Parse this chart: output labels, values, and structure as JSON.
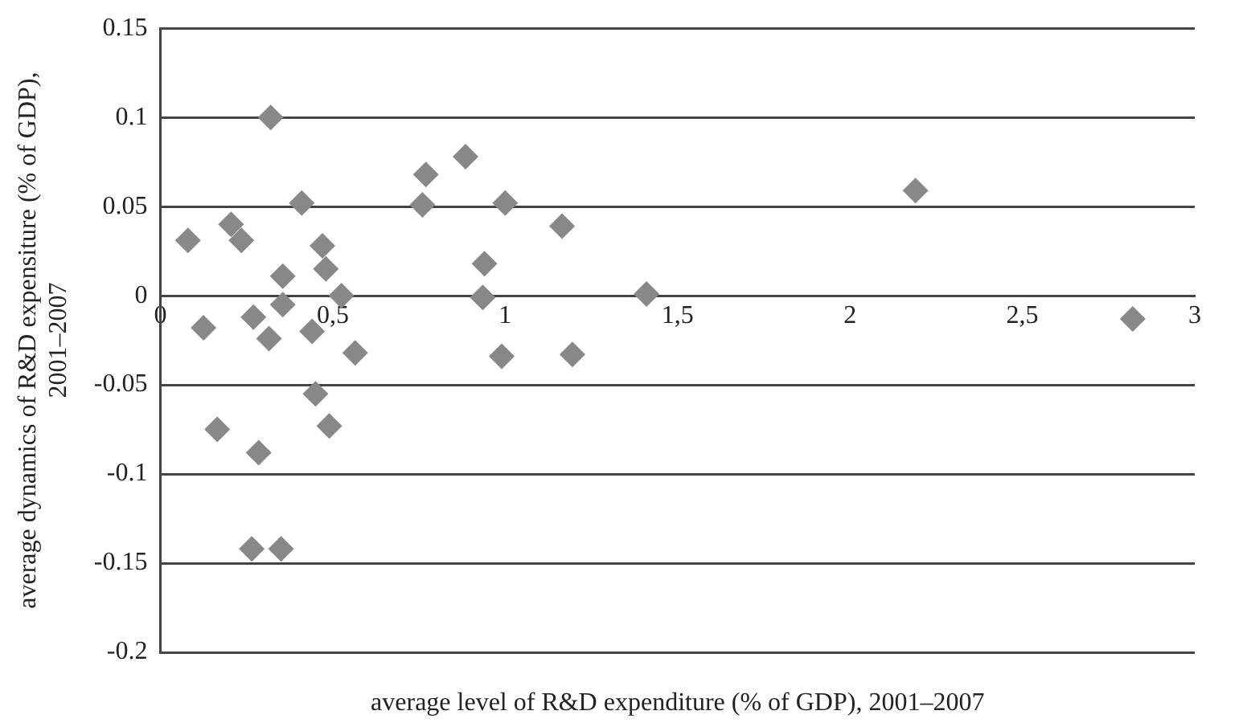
{
  "chart_data": {
    "type": "scatter",
    "xlabel": "average level of R&D expenditure (% of GDP), 2001–2007",
    "ylabel": "average dynamics of R&D expensiture (% of GDP), 2001–2007",
    "x": [
      0.32,
      0.08,
      0.205,
      0.235,
      0.41,
      0.47,
      0.48,
      0.355,
      0.355,
      0.525,
      0.125,
      0.27,
      0.315,
      0.44,
      0.565,
      0.77,
      0.76,
      0.885,
      1.0,
      1.165,
      0.94,
      0.935,
      1.41,
      0.99,
      1.195,
      0.45,
      0.49,
      0.165,
      0.285,
      0.265,
      0.35,
      2.19,
      2.82
    ],
    "values": [
      0.1,
      0.031,
      0.04,
      0.031,
      0.052,
      0.028,
      0.015,
      0.011,
      -0.005,
      0.0,
      -0.018,
      -0.012,
      -0.024,
      -0.02,
      -0.032,
      0.068,
      0.051,
      0.078,
      0.052,
      0.039,
      0.018,
      -0.001,
      0.001,
      -0.034,
      -0.033,
      -0.055,
      -0.073,
      -0.075,
      -0.088,
      -0.142,
      -0.142,
      0.059,
      -0.013
    ],
    "color": "#87888a",
    "marker": "diamond",
    "grid": "y",
    "xlim": [
      0,
      3
    ],
    "xticks": [
      {
        "value": 0,
        "label": "0"
      },
      {
        "value": 0.5,
        "label": "0,5"
      },
      {
        "value": 1,
        "label": "1"
      },
      {
        "value": 1.5,
        "label": "1,5"
      },
      {
        "value": 2,
        "label": "2"
      },
      {
        "value": 2.5,
        "label": "2,5"
      },
      {
        "value": 3,
        "label": "3"
      }
    ],
    "ylim": [
      -0.2,
      0.15
    ],
    "yticks": [
      -0.2,
      -0.15,
      -0.1,
      -0.05,
      0,
      0.05,
      0.1,
      0.15
    ]
  }
}
